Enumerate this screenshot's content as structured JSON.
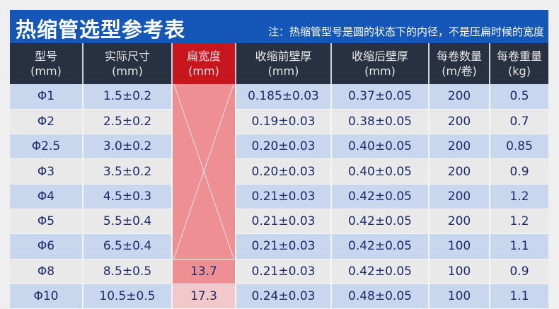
{
  "title": "热缩管选型参考表",
  "note": "注：热缩管型号是圆的状态下的内径，不是压扁时候的宽度",
  "headers": [
    {
      "l1": "型号",
      "l2": "(mm)"
    },
    {
      "l1": "实际尺寸",
      "l2": "(mm)"
    },
    {
      "l1": "扁宽度",
      "l2": "(mm)"
    },
    {
      "l1": "收缩前壁厚",
      "l2": "(mm)"
    },
    {
      "l1": "收缩后壁厚",
      "l2": "(mm)"
    },
    {
      "l1": "每卷数量",
      "l2": "(m/卷)"
    },
    {
      "l1": "每卷重量",
      "l2": "(kg)"
    }
  ],
  "rows": [
    [
      "Φ1",
      "1.5±0.2",
      "",
      "0.185±0.03",
      "0.37±0.05",
      "200",
      "0.5"
    ],
    [
      "Φ2",
      "2.5±0.2",
      "",
      "0.19±0.03",
      "0.38±0.05",
      "200",
      "0.7"
    ],
    [
      "Φ2.5",
      "3.0±0.2",
      "",
      "0.20±0.03",
      "0.40±0.05",
      "200",
      "0.85"
    ],
    [
      "Φ3",
      "3.5±0.2",
      "",
      "0.20±0.03",
      "0.40±0.05",
      "200",
      "0.9"
    ],
    [
      "Φ4",
      "4.5±0.3",
      "",
      "0.21±0.03",
      "0.42±0.05",
      "200",
      "1.2"
    ],
    [
      "Φ5",
      "5.5±0.4",
      "",
      "0.21±0.03",
      "0.42±0.05",
      "200",
      "1.2"
    ],
    [
      "Φ6",
      "6.5±0.4",
      "",
      "0.21±0.03",
      "0.42±0.05",
      "100",
      "1.1"
    ],
    [
      "Φ8",
      "8.5±0.5",
      "13.7",
      "0.21±0.03",
      "0.42±0.05",
      "100",
      "0.9"
    ],
    [
      "Φ10",
      "10.5±0.5",
      "17.3",
      "0.24±0.03",
      "0.48±0.05",
      "100",
      "1.1"
    ]
  ],
  "colors": {
    "title_bg": "#1557b8",
    "header_bg": "#283142",
    "flat_header": "#c8161e",
    "row_blue": "#c9d7ee",
    "row_gray": "#e9e9e9",
    "flat_cell": "#ee8f93"
  }
}
